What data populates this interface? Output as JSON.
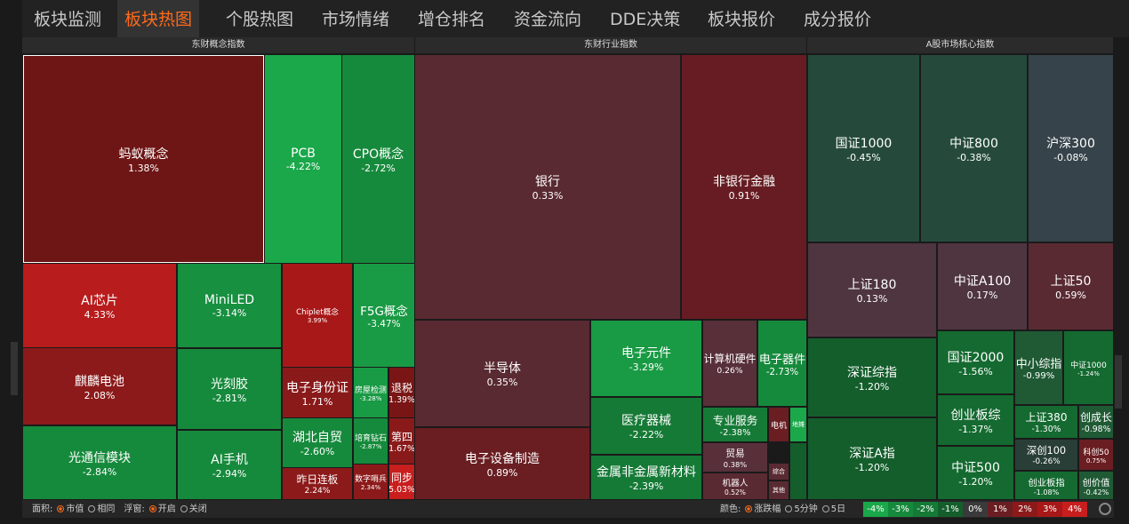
{
  "tabs": [
    "板块监测",
    "板块热图",
    "个股热图",
    "市场情绪",
    "增仓排名",
    "资金流向",
    "DDE决策",
    "板块报价",
    "成分报价"
  ],
  "active_tab": 1,
  "sections": [
    {
      "title": "东财概念指数",
      "tiles": [
        {
          "label": "蚂蚁概念",
          "change": "1.38%",
          "color": "#6e1515"
        },
        {
          "label": "PCB",
          "change": "-4.22%",
          "color": "#1aa84a"
        },
        {
          "label": "CPO概念",
          "change": "-2.72%",
          "color": "#168a3c"
        },
        {
          "label": "AI芯片",
          "change": "4.33%",
          "color": "#b81c1c"
        },
        {
          "label": "MiniLED",
          "change": "-3.14%",
          "color": "#179040"
        },
        {
          "label": "Chiplet概念",
          "change": "3.99%",
          "color": "#a81818"
        },
        {
          "label": "F5G概念",
          "change": "-3.47%",
          "color": "#199a44"
        },
        {
          "label": "麒麟电池",
          "change": "2.08%",
          "color": "#8c1a1a"
        },
        {
          "label": "光刻胶",
          "change": "-2.81%",
          "color": "#168a3c"
        },
        {
          "label": "电子身份证",
          "change": "1.71%",
          "color": "#8a1a1a"
        },
        {
          "label": "房屋检测",
          "change": "-3.28%",
          "color": "#199a44"
        },
        {
          "label": "退税",
          "change": "1.39%",
          "color": "#7a1515"
        },
        {
          "label": "湖北自贸",
          "change": "-2.60%",
          "color": "#168a3c"
        },
        {
          "label": "培育钻石",
          "change": "-2.87%",
          "color": "#168a3c"
        },
        {
          "label": "第四",
          "change": "1.67%",
          "color": "#8a1a1a"
        },
        {
          "label": "光通信模块",
          "change": "-2.84%",
          "color": "#168a3c"
        },
        {
          "label": "AI手机",
          "change": "-2.94%",
          "color": "#168a3c"
        },
        {
          "label": "昨日连板",
          "change": "2.24%",
          "color": "#8c1a1a"
        },
        {
          "label": "数字哨兵",
          "change": "2.34%",
          "color": "#8c1a1a"
        },
        {
          "label": "同步",
          "change": "5.03%",
          "color": "#c81e1e"
        }
      ]
    },
    {
      "title": "东财行业指数",
      "tiles": [
        {
          "label": "银行",
          "change": "0.33%",
          "color": "#5a2a32"
        },
        {
          "label": "非银行金融",
          "change": "0.91%",
          "color": "#661c22"
        },
        {
          "label": "半导体",
          "change": "0.35%",
          "color": "#5a2a32"
        },
        {
          "label": "电子设备制造",
          "change": "0.89%",
          "color": "#6a1e22"
        },
        {
          "label": "电子元件",
          "change": "-3.29%",
          "color": "#199a44"
        },
        {
          "label": "计算机硬件",
          "change": "0.26%",
          "color": "#58303a"
        },
        {
          "label": "电子器件",
          "change": "-2.73%",
          "color": "#168a3c"
        },
        {
          "label": "医疗器械",
          "change": "-2.22%",
          "color": "#157a36"
        },
        {
          "label": "专业服务",
          "change": "-2.38%",
          "color": "#157a36"
        },
        {
          "label": "电机",
          "color": "#6a1e22"
        },
        {
          "label": "地摊",
          "color": "#1aa84a"
        },
        {
          "label": "金属非金属新材料",
          "change": "-2.39%",
          "color": "#157a36"
        },
        {
          "label": "贸易",
          "change": "0.38%",
          "color": "#58303a"
        },
        {
          "label": "机器人",
          "change": "0.52%",
          "color": "#5a2a32"
        },
        {
          "label": "综合",
          "color": "#5a2a32"
        },
        {
          "label": "其他",
          "color": "#5a2a32"
        }
      ]
    },
    {
      "title": "A股市场核心指数",
      "tiles": [
        {
          "label": "国证1000",
          "change": "-0.45%",
          "color": "#254a3c"
        },
        {
          "label": "中证800",
          "change": "-0.38%",
          "color": "#254a3c"
        },
        {
          "label": "沪深300",
          "change": "-0.08%",
          "color": "#36434a"
        },
        {
          "label": "上证180",
          "change": "0.13%",
          "color": "#4f3540"
        },
        {
          "label": "中证A100",
          "change": "0.17%",
          "color": "#4f3540"
        },
        {
          "label": "上证50",
          "change": "0.59%",
          "color": "#5a2a32"
        },
        {
          "label": "深证综指",
          "change": "-1.20%",
          "color": "#145e2c"
        },
        {
          "label": "深证A指",
          "change": "-1.20%",
          "color": "#145e2c"
        },
        {
          "label": "国证2000",
          "change": "-1.56%",
          "color": "#146a30"
        },
        {
          "label": "中小综指",
          "change": "-0.99%",
          "color": "#1f5a34"
        },
        {
          "label": "中证1000",
          "change": "-1.24%",
          "color": "#146a30"
        },
        {
          "label": "创业板综",
          "change": "-1.37%",
          "color": "#146a30"
        },
        {
          "label": "上证380",
          "change": "-1.30%",
          "color": "#146a30"
        },
        {
          "label": "创成长",
          "change": "-0.98%",
          "color": "#1f5a34"
        },
        {
          "label": "中证500",
          "change": "-1.20%",
          "color": "#146a30"
        },
        {
          "label": "深创100",
          "change": "-0.26%",
          "color": "#2a3e38"
        },
        {
          "label": "科创50",
          "change": "0.75%",
          "color": "#6a1e22"
        },
        {
          "label": "创业板指",
          "change": "-1.08%",
          "color": "#146a30"
        },
        {
          "label": "创价值",
          "change": "-0.42%",
          "color": "#1f5a34"
        }
      ]
    }
  ],
  "footer": {
    "area_label": "面积:",
    "area_options": [
      "市值",
      "相同"
    ],
    "float_label": "浮窗:",
    "float_options": [
      "开启",
      "关闭"
    ],
    "color_label": "颜色:",
    "color_options": [
      "涨跌幅",
      "5分钟",
      "5日"
    ],
    "legend": [
      {
        "label": "-4%",
        "color": "#1aa84a"
      },
      {
        "label": "-3%",
        "color": "#168a3c"
      },
      {
        "label": "-2%",
        "color": "#157a36"
      },
      {
        "label": "-1%",
        "color": "#145e2c"
      },
      {
        "label": "0%",
        "color": "#3a3a3a"
      },
      {
        "label": "1%",
        "color": "#6a1e22"
      },
      {
        "label": "2%",
        "color": "#8c1a1a"
      },
      {
        "label": "3%",
        "color": "#a81818"
      },
      {
        "label": "4%",
        "color": "#c81e1e"
      }
    ]
  }
}
